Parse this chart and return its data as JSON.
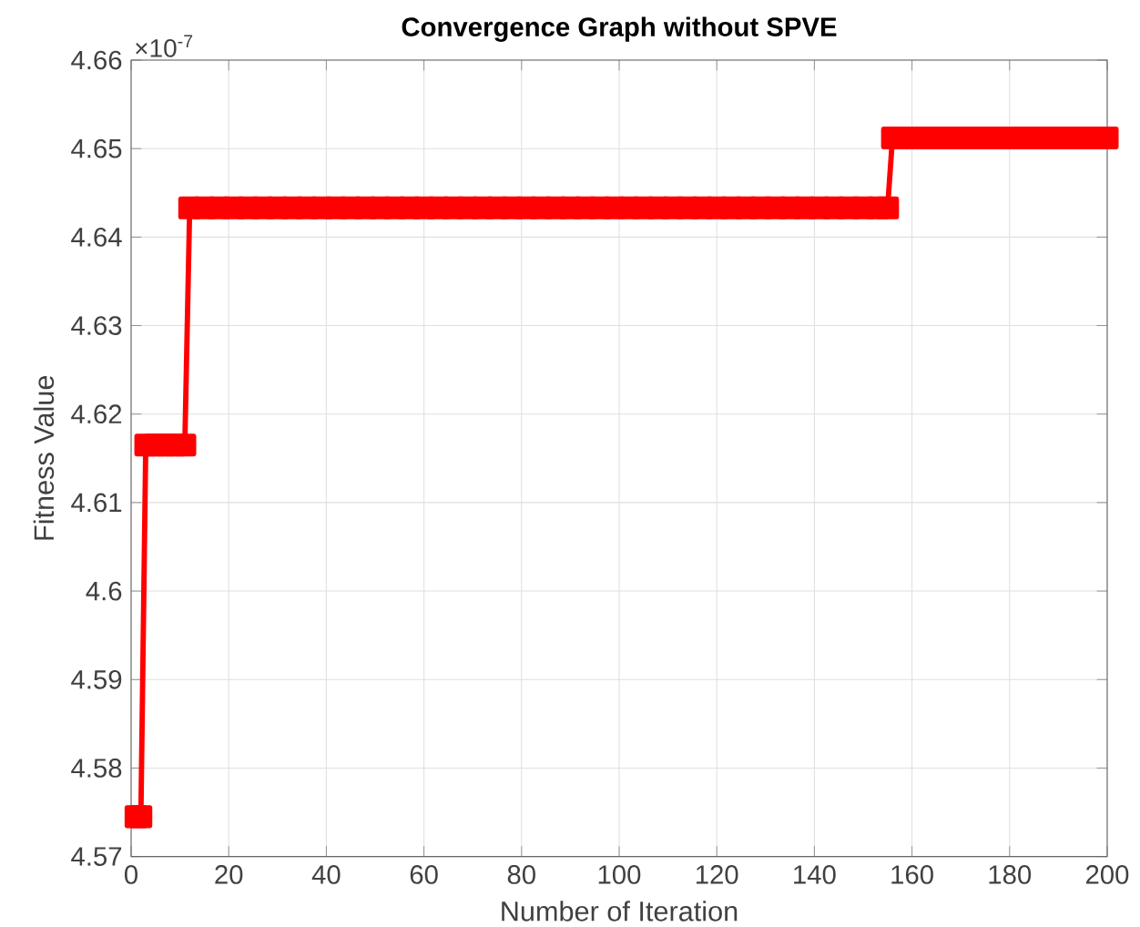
{
  "chart_data": {
    "type": "line",
    "title": "Convergence Graph without SPVE",
    "xlabel": "Number of Iteration",
    "ylabel": "Fitness Value",
    "annotations": [
      "×10$^{-7}$"
    ],
    "x": [
      1,
      2,
      3,
      5,
      7,
      9,
      11,
      12,
      15,
      18,
      21,
      24,
      27,
      30,
      33,
      36,
      39,
      42,
      45,
      48,
      51,
      54,
      57,
      60,
      63,
      66,
      69,
      72,
      75,
      78,
      81,
      84,
      87,
      90,
      93,
      96,
      99,
      102,
      105,
      108,
      111,
      114,
      117,
      120,
      123,
      126,
      129,
      132,
      135,
      138,
      141,
      144,
      147,
      150,
      153,
      155,
      156,
      159,
      162,
      165,
      168,
      171,
      174,
      177,
      180,
      183,
      186,
      189,
      192,
      195,
      198,
      200
    ],
    "values": [
      4.5745,
      4.5745,
      4.6165,
      4.6165,
      4.6165,
      4.6165,
      4.6165,
      4.6433,
      4.6433,
      4.6433,
      4.6433,
      4.6433,
      4.6433,
      4.6433,
      4.6433,
      4.6433,
      4.6433,
      4.6433,
      4.6433,
      4.6433,
      4.6433,
      4.6433,
      4.6433,
      4.6433,
      4.6433,
      4.6433,
      4.6433,
      4.6433,
      4.6433,
      4.6433,
      4.6433,
      4.6433,
      4.6433,
      4.6433,
      4.6433,
      4.6433,
      4.6433,
      4.6433,
      4.6433,
      4.6433,
      4.6433,
      4.6433,
      4.6433,
      4.6433,
      4.6433,
      4.6433,
      4.6433,
      4.6433,
      4.6433,
      4.6433,
      4.6433,
      4.6433,
      4.6433,
      4.6433,
      4.6433,
      4.6433,
      4.6512,
      4.6512,
      4.6512,
      4.6512,
      4.6512,
      4.6512,
      4.6512,
      4.6512,
      4.6512,
      4.6512,
      4.6512,
      4.6512,
      4.6512,
      4.6512,
      4.6512,
      4.6512
    ],
    "color": "#ff0000",
    "marker": "square",
    "line_style": "solid",
    "grid": true,
    "xlim": [
      0,
      200
    ],
    "ylim": [
      4.57,
      4.66
    ],
    "xticks": [
      0,
      20,
      40,
      60,
      80,
      100,
      120,
      140,
      160,
      180,
      200
    ],
    "yticks": [
      4.57,
      4.58,
      4.59,
      4.6,
      4.61,
      4.62,
      4.63,
      4.64,
      4.65,
      4.66
    ]
  }
}
